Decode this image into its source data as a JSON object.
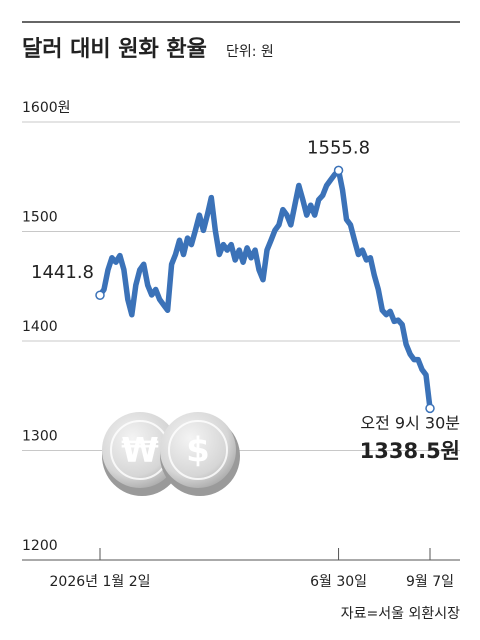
{
  "chart_data": {
    "type": "line",
    "title": "달러 대비 원화 환율",
    "unit": "단위: 원",
    "source": "자료=서울 외환시장",
    "coin_symbols": [
      "₩",
      "$"
    ],
    "end_note": "오전 9시 30분",
    "color": "#3b72b8",
    "grid": true,
    "ylim": [
      1200,
      1600
    ],
    "yticks": [
      1200,
      1300,
      1400,
      1500,
      {
        "value": 1600,
        "label": "1600원"
      }
    ],
    "categories": [
      "2026년 1월 2일",
      null,
      null,
      null,
      null,
      null,
      null,
      null,
      null,
      null,
      null,
      null,
      null,
      null,
      null,
      null,
      null,
      null,
      null,
      null,
      null,
      null,
      null,
      null,
      null,
      null,
      null,
      null,
      null,
      null,
      null,
      null,
      null,
      null,
      null,
      null,
      null,
      null,
      null,
      null,
      null,
      null,
      null,
      null,
      null,
      null,
      null,
      null,
      null,
      null,
      null,
      null,
      null,
      null,
      null,
      null,
      null,
      null,
      null,
      null,
      "6월 30일",
      null,
      null,
      null,
      null,
      null,
      null,
      null,
      null,
      null,
      null,
      null,
      null,
      null,
      null,
      null,
      null,
      null,
      null,
      null,
      null,
      null,
      null,
      "9월 7일"
    ],
    "values": [
      1441.8,
      1447,
      1465,
      1476,
      1472,
      1478,
      1465,
      1438,
      1424,
      1451,
      1465,
      1470,
      1451,
      1442,
      1447,
      1438,
      1433,
      1428,
      1470,
      1479,
      1492,
      1479,
      1494,
      1488,
      1501,
      1515,
      1501,
      1515,
      1531,
      1501,
      1479,
      1488,
      1483,
      1488,
      1474,
      1483,
      1472,
      1485,
      1476,
      1483,
      1465,
      1456,
      1483,
      1492,
      1501,
      1506,
      1520,
      1515,
      1506,
      1524,
      1542,
      1529,
      1515,
      1524,
      1515,
      1529,
      1533,
      1542,
      1547,
      1552,
      1555.8,
      1538,
      1511,
      1506,
      1492,
      1479,
      1483,
      1474,
      1476,
      1460,
      1447,
      1428,
      1424,
      1427,
      1418,
      1419,
      1415,
      1397,
      1388,
      1383,
      1383,
      1374,
      1369,
      1338.5
    ],
    "value_labels": [
      "1441.8",
      null,
      null,
      null,
      null,
      null,
      null,
      null,
      null,
      null,
      null,
      null,
      null,
      null,
      null,
      null,
      null,
      null,
      null,
      null,
      null,
      null,
      null,
      null,
      null,
      null,
      null,
      null,
      null,
      null,
      null,
      null,
      null,
      null,
      null,
      null,
      null,
      null,
      null,
      null,
      null,
      null,
      null,
      null,
      null,
      null,
      null,
      null,
      null,
      null,
      null,
      null,
      null,
      null,
      null,
      null,
      null,
      null,
      null,
      null,
      "1555.8",
      null,
      null,
      null,
      null,
      null,
      null,
      null,
      null,
      null,
      null,
      null,
      null,
      null,
      null,
      null,
      null,
      null,
      null,
      null,
      null,
      null,
      null,
      "1338.5원"
    ]
  }
}
